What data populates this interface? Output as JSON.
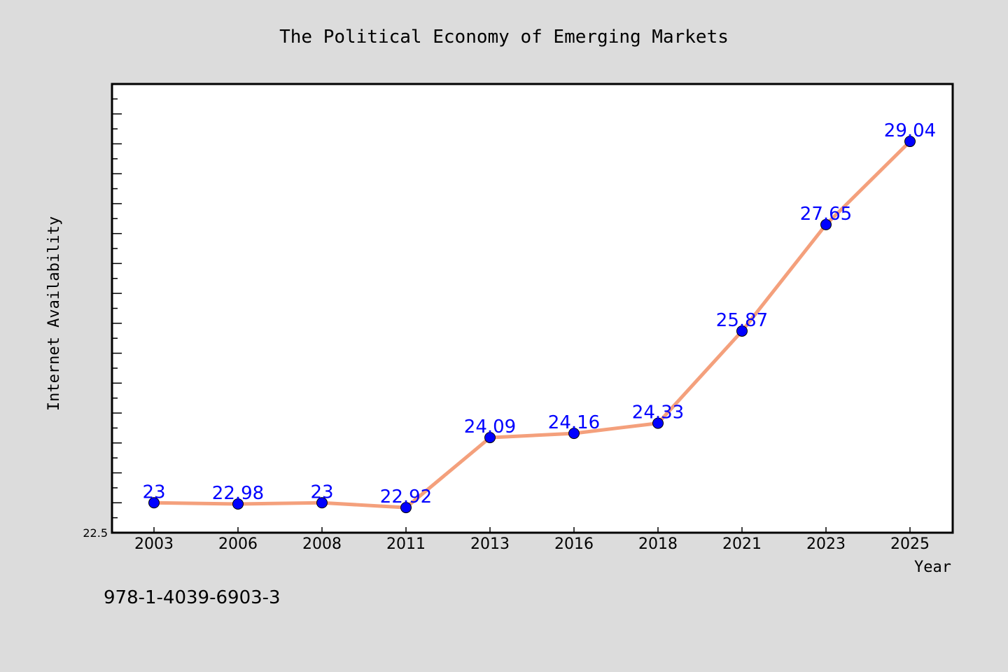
{
  "chart_data": {
    "type": "line",
    "title": "The Political Economy of Emerging Markets",
    "xlabel": "Year",
    "ylabel": "Internet Availability",
    "categories": [
      "2003",
      "2006",
      "2008",
      "2011",
      "2013",
      "2016",
      "2018",
      "2021",
      "2023",
      "2025"
    ],
    "values": [
      23,
      22.98,
      23,
      22.92,
      24.09,
      24.16,
      24.33,
      25.87,
      27.65,
      29.04
    ],
    "data_labels": [
      "23",
      "22.98",
      "23",
      "22.92",
      "24.09",
      "24.16",
      "24.33",
      "25.87",
      "27.65",
      "29.04"
    ],
    "ylim": [
      22.5,
      30
    ],
    "yticks_labeled": [
      "22.5"
    ],
    "grid": false,
    "line_color": "#f4a07c",
    "marker_color": "#0000ff",
    "label_color": "#0000ff",
    "background_color": "#dcdcdc",
    "plot_background": "#ffffff"
  },
  "footer": {
    "isbn": "978-1-4039-6903-3"
  }
}
